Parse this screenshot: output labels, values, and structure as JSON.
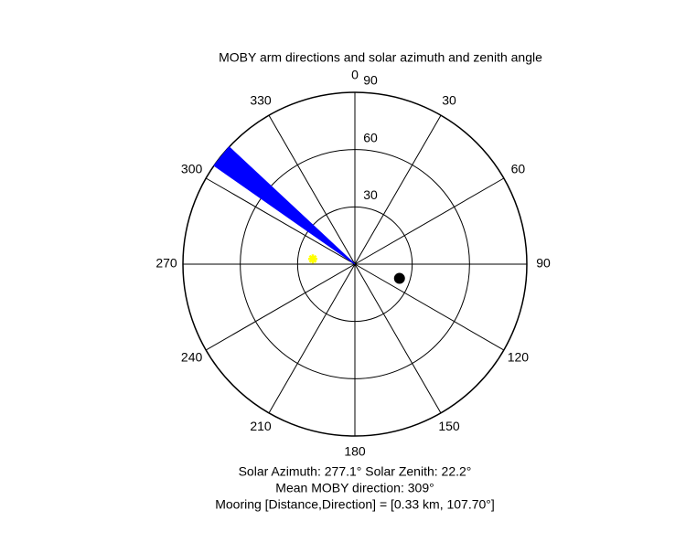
{
  "chart_data": {
    "type": "polar",
    "title": "MOBY arm directions and solar azimuth and zenith angle",
    "theta_zero": "top",
    "theta_direction": "clockwise",
    "rlim": [
      0,
      90
    ],
    "rticks": [
      30,
      60,
      90
    ],
    "thetaticks": [
      0,
      30,
      60,
      90,
      120,
      150,
      180,
      210,
      240,
      270,
      300,
      330
    ],
    "arm_sector": {
      "theta": [
        305,
        313
      ],
      "r": 90,
      "color": "#0000ff"
    },
    "sun": {
      "theta": 277.1,
      "r": 22.2,
      "color": "#ffff00"
    },
    "mooring": {
      "theta": 107.7,
      "r": 24.5,
      "color": "#000000"
    },
    "annotations": [
      "Solar Azimuth: 277.1°   Solar Zenith: 22.2°",
      "Mean MOBY direction: 309°",
      "Mooring [Distance,Direction] = [0.33 km, 107.70°]"
    ]
  }
}
